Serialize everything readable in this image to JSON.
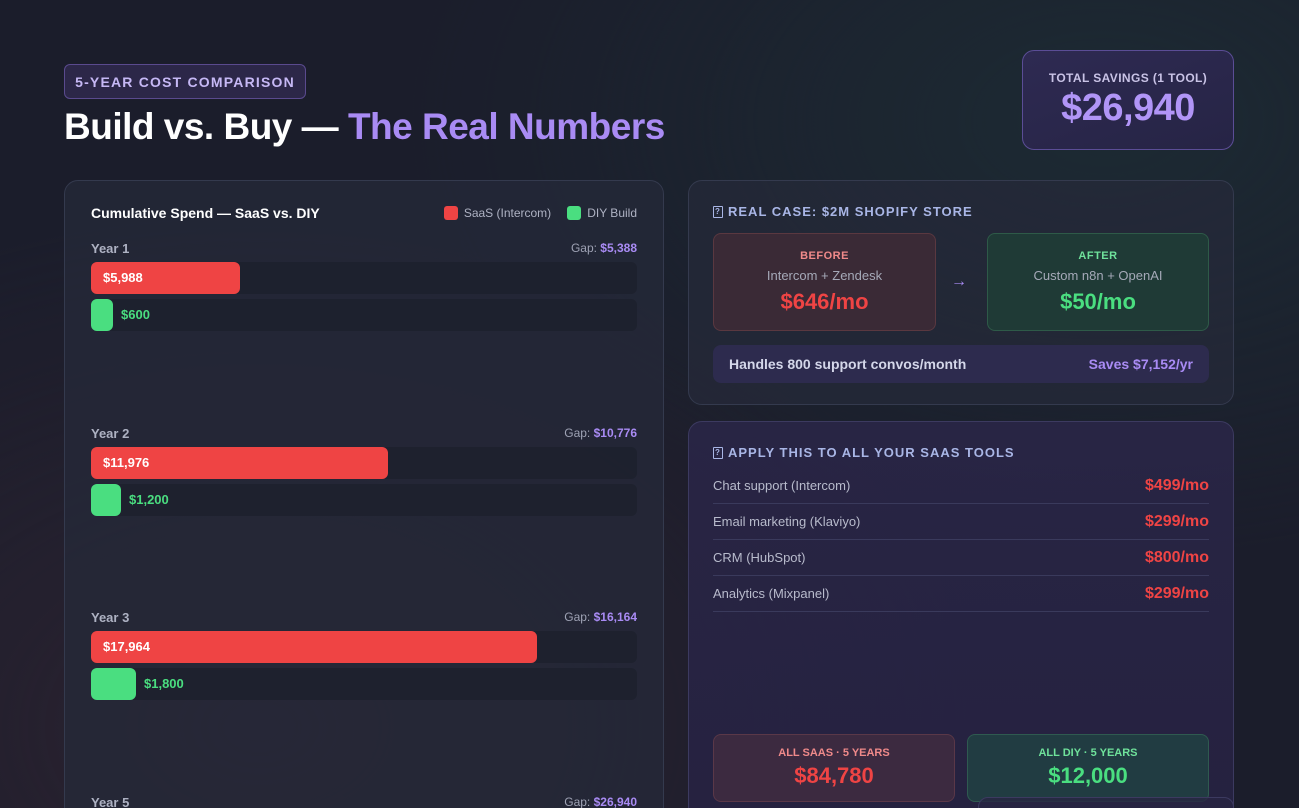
{
  "header": {
    "badge": "5-YEAR COST COMPARISON",
    "title_main": "Build vs. Buy — ",
    "title_accent": "The Real Numbers",
    "accent_color": "#a98bf4"
  },
  "savings": {
    "label": "TOTAL SAVINGS (1 TOOL)",
    "value": "$26,940"
  },
  "chart_data": {
    "type": "bar",
    "title": "Cumulative Spend — SaaS vs. DIY",
    "legend": [
      "SaaS (Intercom)",
      "DIY Build"
    ],
    "gap_prefix": "Gap: ",
    "colors": {
      "saas": "#ef4444",
      "diy": "#4ade80"
    },
    "max": 22000,
    "categories": [
      "Year 1",
      "Year 2",
      "Year 3",
      "Year 5"
    ],
    "series": [
      {
        "name": "SaaS (Intercom)",
        "values": [
          5988,
          11976,
          17964,
          null
        ]
      },
      {
        "name": "DIY Build",
        "values": [
          600,
          1200,
          1800,
          null
        ]
      }
    ],
    "groups": [
      {
        "year": "Year 1",
        "gap": "$5,388",
        "saas": 5988,
        "saas_label": "$5,988",
        "diy": 600,
        "diy_label": "$600"
      },
      {
        "year": "Year 2",
        "gap": "$10,776",
        "saas": 11976,
        "saas_label": "$11,976",
        "diy": 1200,
        "diy_label": "$1,200"
      },
      {
        "year": "Year 3",
        "gap": "$16,164",
        "saas": 17964,
        "saas_label": "$17,964",
        "diy": 1800,
        "diy_label": "$1,800"
      },
      {
        "year": "Year 5",
        "gap": "$26,940"
      }
    ]
  },
  "case": {
    "title": "REAL CASE: $2M SHOPIFY STORE",
    "before": {
      "tag": "BEFORE",
      "sub": "Intercom + Zendesk",
      "price": "$646/mo"
    },
    "after": {
      "tag": "AFTER",
      "sub": "Custom n8n + OpenAI",
      "price": "$50/mo"
    },
    "arrow": "→",
    "footer_left": "Handles 800 support convos/month",
    "footer_right": "Saves $7,152/yr"
  },
  "tools": {
    "title": "APPLY THIS TO ALL YOUR SAAS TOOLS",
    "rows": [
      {
        "name": "Chat support (Intercom)",
        "price": "$499/mo"
      },
      {
        "name": "Email marketing (Klaviyo)",
        "price": "$299/mo"
      },
      {
        "name": "CRM (HubSpot)",
        "price": "$800/mo"
      },
      {
        "name": "Analytics (Mixpanel)",
        "price": "$299/mo"
      }
    ],
    "all_saas": {
      "label": "ALL SAAS · 5 YEARS",
      "value": "$84,780"
    },
    "all_diy": {
      "label": "ALL DIY · 5 YEARS",
      "value": "$12,000"
    }
  }
}
